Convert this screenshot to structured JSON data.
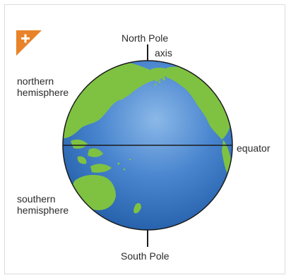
{
  "labels": {
    "north_pole": "North Pole",
    "axis": "axis",
    "northern_hemisphere_line1": "northern",
    "northern_hemisphere_line2": "hemisphere",
    "equator": "equator",
    "southern_hemisphere_line1": "southern",
    "southern_hemisphere_line2": "hemisphere",
    "south_pole": "South Pole"
  },
  "colors": {
    "ocean_light": "#6fa3dd",
    "ocean_dark": "#1f5fae",
    "land": "#7fc242",
    "land_dark": "#5ea12e",
    "outline": "#1a1a1a",
    "badge": "#e8832a"
  },
  "icons": {
    "zoom_badge": "plus-icon"
  }
}
